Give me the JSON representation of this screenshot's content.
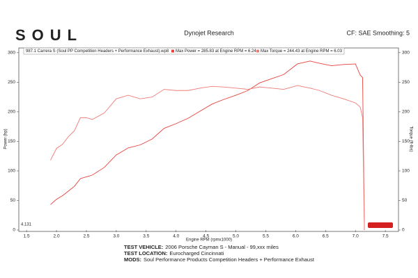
{
  "chart_data": {
    "type": "line",
    "logo": "SOUL",
    "title": "Dynojet Research",
    "subtitle": "CF: SAE Smoothing: 5",
    "legend_title": "987.1 Carrera S (Soul PP Competition Headers + Performance Exhaust).wp8",
    "xlabel": "Engine RPM (rpmx1000)",
    "ylabel": "Power (hp)",
    "y2label": "Torque (ft-lbs)",
    "corner_note": "4.131",
    "x": [
      1.9,
      2.0,
      2.1,
      2.2,
      2.3,
      2.4,
      2.5,
      2.6,
      2.8,
      3.0,
      3.2,
      3.4,
      3.6,
      3.8,
      4.0,
      4.2,
      4.4,
      4.6,
      4.8,
      5.0,
      5.2,
      5.4,
      5.6,
      5.8,
      6.03,
      6.24,
      6.4,
      6.6,
      6.8,
      7.0,
      7.08,
      7.12,
      7.15
    ],
    "series": [
      {
        "name": "Max Power = 285.83 at Engine RPM = 6.24",
        "color": "#e8413c",
        "values": [
          43,
          52,
          58,
          66,
          74,
          87,
          90,
          93,
          106,
          127,
          139,
          144,
          154,
          172,
          180,
          189,
          201,
          213,
          221,
          228,
          236,
          249,
          256,
          263,
          281,
          285.83,
          282,
          278,
          280,
          281,
          262,
          258,
          0
        ]
      },
      {
        "name": "Max Torque = 244.43 at Engine RPM = 6.03",
        "color": "#f07a76",
        "axis": "y2",
        "values": [
          118,
          138,
          145,
          158,
          168,
          190,
          190,
          187,
          198,
          222,
          228,
          222,
          225,
          238,
          236,
          236,
          240,
          243,
          242,
          240,
          238,
          242,
          240,
          238,
          244.43,
          240,
          236,
          228,
          222,
          215,
          208,
          190,
          0
        ]
      }
    ],
    "xlim": [
      1.37,
      7.72
    ],
    "xticks": [
      1.5,
      {
        "value": 2,
        "label": "2.0"
      },
      2.5,
      {
        "value": 3,
        "label": "3.0"
      },
      3.5,
      {
        "value": 4,
        "label": "4.0"
      },
      4.5,
      {
        "value": 5,
        "label": "5.0"
      },
      5.5,
      {
        "value": 6,
        "label": "6.0"
      },
      6.5,
      {
        "value": 7,
        "label": "7.0"
      },
      7.5
    ],
    "ylim": [
      0,
      308
    ],
    "yticks": [
      0,
      50,
      100,
      150,
      200,
      250,
      300
    ],
    "y2lim": [
      0,
      308
    ],
    "y2ticks": [
      0,
      50,
      100,
      150,
      200,
      250,
      300
    ],
    "grid": false,
    "footer": [
      {
        "label": "TEST VEHICLE:",
        "text": "2006 Porsche Cayman S - Manual - 99,xxx miles"
      },
      {
        "label": "TEST LOCATION:",
        "text": "Eurocharged Cincinnati"
      },
      {
        "label": "MODS:",
        "text": "Soul Performance Products Competition Headers + Performance Exhaust"
      }
    ]
  }
}
